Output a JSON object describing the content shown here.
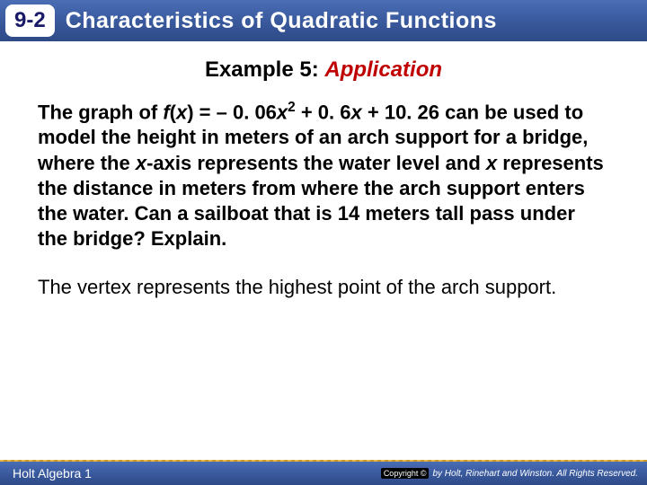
{
  "header": {
    "section_number": "9-2",
    "section_title": "Characteristics of Quadratic Functions",
    "bg_gradient_top": "#4a6db5",
    "bg_gradient_bottom": "#2e4a87"
  },
  "example": {
    "label": "Example 5:",
    "type": "Application",
    "label_color": "#000000",
    "type_color": "#c00000",
    "fontsize": 24
  },
  "problem": {
    "prefix": "The graph of ",
    "func_name": "f",
    "func_open": "(",
    "func_var": "x",
    "func_close": ") = ",
    "coef_a": "– 0. 06",
    "var1": "x",
    "sup": "2",
    "mid1": " + 0. 6",
    "var2": "x",
    "mid2": " + 10. 26 can be used to model the height in meters of an arch support for a bridge, where the ",
    "var3": "x",
    "mid3": "-axis represents the water level and ",
    "var4": "x",
    "tail": " represents the distance in meters from where the arch support enters the water. Can a sailboat that is 14 meters tall pass under the bridge? Explain.",
    "fontsize": 22,
    "weight": 900
  },
  "explanation": {
    "text": "The vertex represents the highest point of the arch support.",
    "fontsize": 22
  },
  "footer": {
    "left": "Holt Algebra 1",
    "copyright_badge": "Copyright ©",
    "copyright_text": "by Holt, Rinehart and Winston. All Rights Reserved.",
    "bg_gradient_top": "#4a6db5",
    "bg_gradient_bottom": "#2e4a87"
  }
}
